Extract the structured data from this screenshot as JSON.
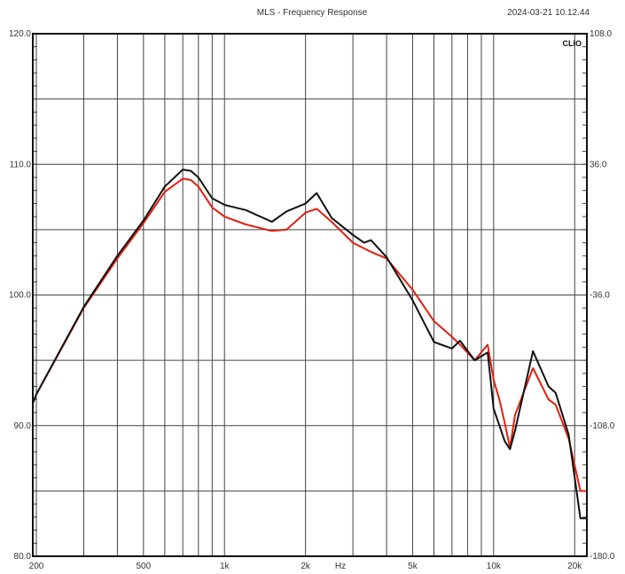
{
  "chart_data": {
    "type": "line",
    "title": "MLS - Frequency Response",
    "timestamp": "2024-03-21 10.12.44",
    "brand": "CLIO",
    "xlabel": "Hz",
    "x_scale": "log",
    "xlim": [
      194,
      22200
    ],
    "ylim": [
      80,
      120
    ],
    "grid": true,
    "x_ticks": [
      {
        "value": 200,
        "label": "200"
      },
      {
        "value": 500,
        "label": "500"
      },
      {
        "value": 1000,
        "label": "1k"
      },
      {
        "value": 2000,
        "label": "2k"
      },
      {
        "value": 5000,
        "label": "5k"
      },
      {
        "value": 10000,
        "label": "10k"
      },
      {
        "value": 20000,
        "label": "20k"
      }
    ],
    "y_ticks_left": [
      {
        "value": 120,
        "label": "120.0"
      },
      {
        "value": 110,
        "label": "110.0"
      },
      {
        "value": 100,
        "label": "100.0"
      },
      {
        "value": 90,
        "label": "90.0"
      },
      {
        "value": 80,
        "label": "80.0"
      }
    ],
    "y_ticks_right": [
      {
        "value": 120,
        "label": "108.0"
      },
      {
        "value": 110,
        "label": "36.0"
      },
      {
        "value": 100,
        "label": "-36.0"
      },
      {
        "value": 90,
        "label": "-108.0"
      },
      {
        "value": 80,
        "label": "-180.0"
      }
    ],
    "series": [
      {
        "color": "#111111",
        "x": [
          194,
          200,
          300,
          400,
          500,
          600,
          700,
          750,
          800,
          900,
          1000,
          1200,
          1500,
          1700,
          2000,
          2200,
          2500,
          3000,
          3300,
          3500,
          4000,
          5000,
          6000,
          7000,
          7500,
          8500,
          9500,
          10000,
          11000,
          11500,
          12000,
          14000,
          16000,
          17000,
          19000,
          21000,
          22200
        ],
        "y": [
          91.7,
          92.4,
          99.1,
          103.0,
          105.7,
          108.3,
          109.6,
          109.5,
          109.0,
          107.4,
          106.9,
          106.5,
          105.6,
          106.4,
          107.0,
          107.8,
          105.9,
          104.6,
          104.0,
          104.2,
          102.9,
          99.6,
          96.4,
          95.9,
          96.5,
          95.0,
          95.6,
          91.3,
          88.8,
          88.2,
          89.6,
          95.7,
          93.0,
          92.5,
          89.3,
          82.9,
          82.9
        ]
      },
      {
        "color": "#e02010",
        "x": [
          194,
          200,
          300,
          400,
          500,
          600,
          700,
          750,
          800,
          900,
          1000,
          1200,
          1500,
          1700,
          2000,
          2200,
          2500,
          3000,
          3500,
          4000,
          5000,
          6000,
          7000,
          7500,
          8500,
          9500,
          10000,
          10500,
          11000,
          11500,
          12000,
          14000,
          16000,
          17000,
          19000,
          21000,
          22200
        ],
        "y": [
          91.7,
          92.4,
          99.0,
          102.8,
          105.5,
          107.9,
          108.9,
          108.8,
          108.3,
          106.7,
          106.0,
          105.4,
          104.9,
          105.0,
          106.3,
          106.6,
          105.6,
          104.0,
          103.3,
          102.8,
          100.4,
          98.0,
          96.8,
          96.2,
          95.0,
          96.2,
          93.5,
          92.0,
          90.2,
          88.3,
          90.8,
          94.4,
          92.0,
          91.6,
          89.0,
          85.0,
          85.0
        ]
      }
    ]
  }
}
